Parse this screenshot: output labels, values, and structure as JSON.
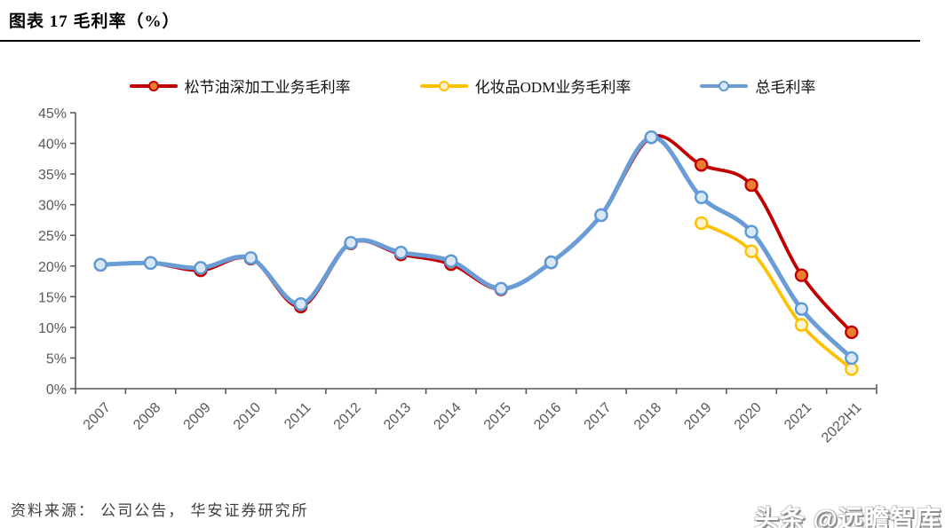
{
  "figure": {
    "title": "图表 17  毛利率（%）"
  },
  "source": {
    "text": "资料来源： 公司公告， 华安证券研究所"
  },
  "watermark": {
    "text": "头条 @远瞻智库"
  },
  "colors": {
    "axis": "#595959",
    "tick_label": "#595959",
    "title_rule": "#000000"
  },
  "chart_data": {
    "type": "line",
    "title": "毛利率（%）",
    "categories": [
      "2007",
      "2008",
      "2009",
      "2010",
      "2011",
      "2012",
      "2013",
      "2014",
      "2015",
      "2016",
      "2017",
      "2018",
      "2019",
      "2020",
      "2021",
      "2022H1"
    ],
    "series": [
      {
        "name": "松节油深加工业务毛利率",
        "color": "#C00000",
        "marker_fill": "#ED7D31",
        "marker_stroke": "#C00000",
        "line_width": 3.8,
        "values": [
          20.2,
          20.5,
          19.3,
          21.2,
          13.4,
          23.7,
          21.9,
          20.3,
          16.2,
          20.6,
          28.3,
          41.0,
          36.5,
          33.2,
          18.5,
          9.2
        ]
      },
      {
        "name": "化妆品ODM业务毛利率",
        "color": "#FFC000",
        "marker_fill": "#FFF3CE",
        "marker_stroke": "#FFC000",
        "line_width": 3.8,
        "values": [
          null,
          null,
          null,
          null,
          null,
          null,
          null,
          null,
          null,
          null,
          null,
          null,
          27.0,
          22.4,
          10.4,
          3.2
        ]
      },
      {
        "name": "总毛利率",
        "color": "#6A9CD6",
        "marker_fill": "#DAE7F5",
        "marker_stroke": "#5B9BD5",
        "line_width": 5,
        "values": [
          20.2,
          20.5,
          19.7,
          21.3,
          13.8,
          23.8,
          22.2,
          20.8,
          16.3,
          20.6,
          28.3,
          41.0,
          31.2,
          25.6,
          13.0,
          5.0
        ]
      }
    ],
    "ylim": [
      0,
      45
    ],
    "ytick_step": 5,
    "ytick_suffix": "%",
    "xlabel": "",
    "ylabel": "",
    "legend_position": "top",
    "grid": false,
    "smooth": true
  }
}
